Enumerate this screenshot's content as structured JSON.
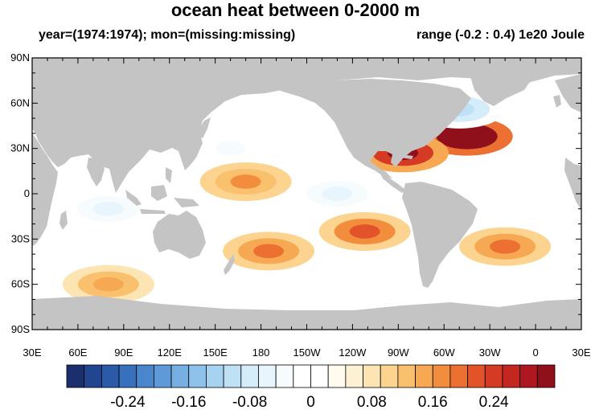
{
  "title": "ocean heat between 0-2000 m",
  "subtitle_left": "year=(1974:1974); mon=(missing:missing)",
  "subtitle_right": "range (-0.2 : 0.4) 1e20 Joule",
  "colors": {
    "land": "#c4c4c4",
    "ocean_base": "#ffffff"
  },
  "chart_data": {
    "type": "heatmap",
    "lat_ticks": [
      "90N",
      "60N",
      "30N",
      "0",
      "30S",
      "60S",
      "90S"
    ],
    "lon_ticks": [
      "30E",
      "60E",
      "90E",
      "120E",
      "150E",
      "180",
      "150W",
      "120W",
      "90W",
      "60W",
      "30W",
      "0",
      "30E"
    ],
    "lon_range": [
      30,
      390
    ],
    "lat_range": [
      -90,
      90
    ],
    "colorbar": {
      "labels": [
        "-0.24",
        "-0.16",
        "-0.08",
        "0",
        "0.08",
        "0.16",
        "0.24"
      ],
      "label_values": [
        -0.24,
        -0.16,
        -0.08,
        0,
        0.08,
        0.16,
        0.24
      ],
      "min": -0.32,
      "max": 0.32,
      "step": 0.02,
      "colors": [
        "#1b2f6e",
        "#21468f",
        "#2a5aa8",
        "#3770bc",
        "#4a86cc",
        "#5f9ad8",
        "#77afe2",
        "#8fc2ea",
        "#a7d3f1",
        "#bfe1f6",
        "#d5ecf9",
        "#e8f5fc",
        "#f6fbfe",
        "#ffffff",
        "#ffffff",
        "#fffbee",
        "#fef1d3",
        "#fde4b3",
        "#fcd48f",
        "#f9c06e",
        "#f6a852",
        "#f28d3e",
        "#ec7032",
        "#e3532a",
        "#d53a25",
        "#c42622",
        "#ad171f",
        "#8f0f1a"
      ]
    },
    "features": [
      {
        "name": "north-atlantic-warm",
        "lon": 315,
        "lat": 38,
        "value": 0.3
      },
      {
        "name": "gulf-of-mexico-warm",
        "lon": 273,
        "lat": 27,
        "value": 0.22
      },
      {
        "name": "labrador-sea-cool",
        "lon": 310,
        "lat": 56,
        "value": -0.14
      },
      {
        "name": "south-pacific-warm",
        "lon": 248,
        "lat": -25,
        "value": 0.14
      },
      {
        "name": "south-atlantic-warm",
        "lon": 340,
        "lat": -35,
        "value": 0.13
      },
      {
        "name": "tasman-warm",
        "lon": 185,
        "lat": -38,
        "value": 0.12
      },
      {
        "name": "indian-ocean-cool",
        "lon": 80,
        "lat": -10,
        "value": -0.1
      },
      {
        "name": "central-pacific-cool",
        "lon": 230,
        "lat": 0,
        "value": -0.1
      },
      {
        "name": "north-pacific-cool",
        "lon": 160,
        "lat": 30,
        "value": -0.08
      },
      {
        "name": "equatorial-pacific-warm",
        "lon": 170,
        "lat": 8,
        "value": 0.1
      },
      {
        "name": "southern-ocean-warm",
        "lon": 80,
        "lat": -60,
        "value": 0.08
      }
    ]
  }
}
